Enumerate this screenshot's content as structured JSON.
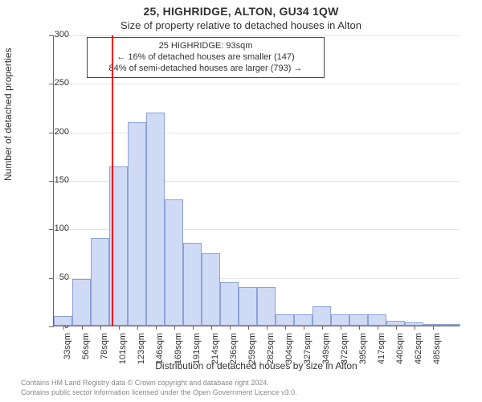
{
  "chart": {
    "type": "histogram",
    "title": "25, HIGHRIDGE, ALTON, GU34 1QW",
    "subtitle": "Size of property relative to detached houses in Alton",
    "ylabel": "Number of detached properties",
    "xlabel": "Distribution of detached houses by size in Alton",
    "annotation": {
      "line1": "25 HIGHRIDGE: 93sqm",
      "line2": "← 16% of detached houses are smaller (147)",
      "line3": "84% of semi-detached houses are larger (793) →"
    },
    "footer": {
      "line1": "Contains HM Land Registry data © Crown copyright and database right 2024.",
      "line2": "Contains public sector information licensed under the Open Government Licence v3.0."
    },
    "ylim": [
      0,
      300
    ],
    "yticks": [
      0,
      50,
      100,
      150,
      200,
      250,
      300
    ],
    "ytick_step": 50,
    "bar_fill": "#cfdaf5",
    "bar_border": "#8ca1d8",
    "grid_color": "#e6e6e6",
    "axis_color": "#666666",
    "marker_color": "#ff0000",
    "marker_x": 93,
    "background_color": "#ffffff",
    "label_color": "#333333",
    "title_fontsize": 14,
    "label_fontsize": 12,
    "tick_fontsize": 11,
    "bin_width_sqm": 22.6,
    "x_start_sqm": 22,
    "x_ticks": [
      33,
      56,
      78,
      101,
      123,
      146,
      169,
      191,
      214,
      236,
      259,
      282,
      304,
      327,
      349,
      372,
      395,
      417,
      440,
      462,
      485
    ],
    "values": [
      10,
      48,
      90,
      164,
      210,
      220,
      130,
      85,
      75,
      45,
      40,
      40,
      12,
      12,
      20,
      12,
      12,
      12,
      5,
      3,
      2,
      2
    ]
  }
}
